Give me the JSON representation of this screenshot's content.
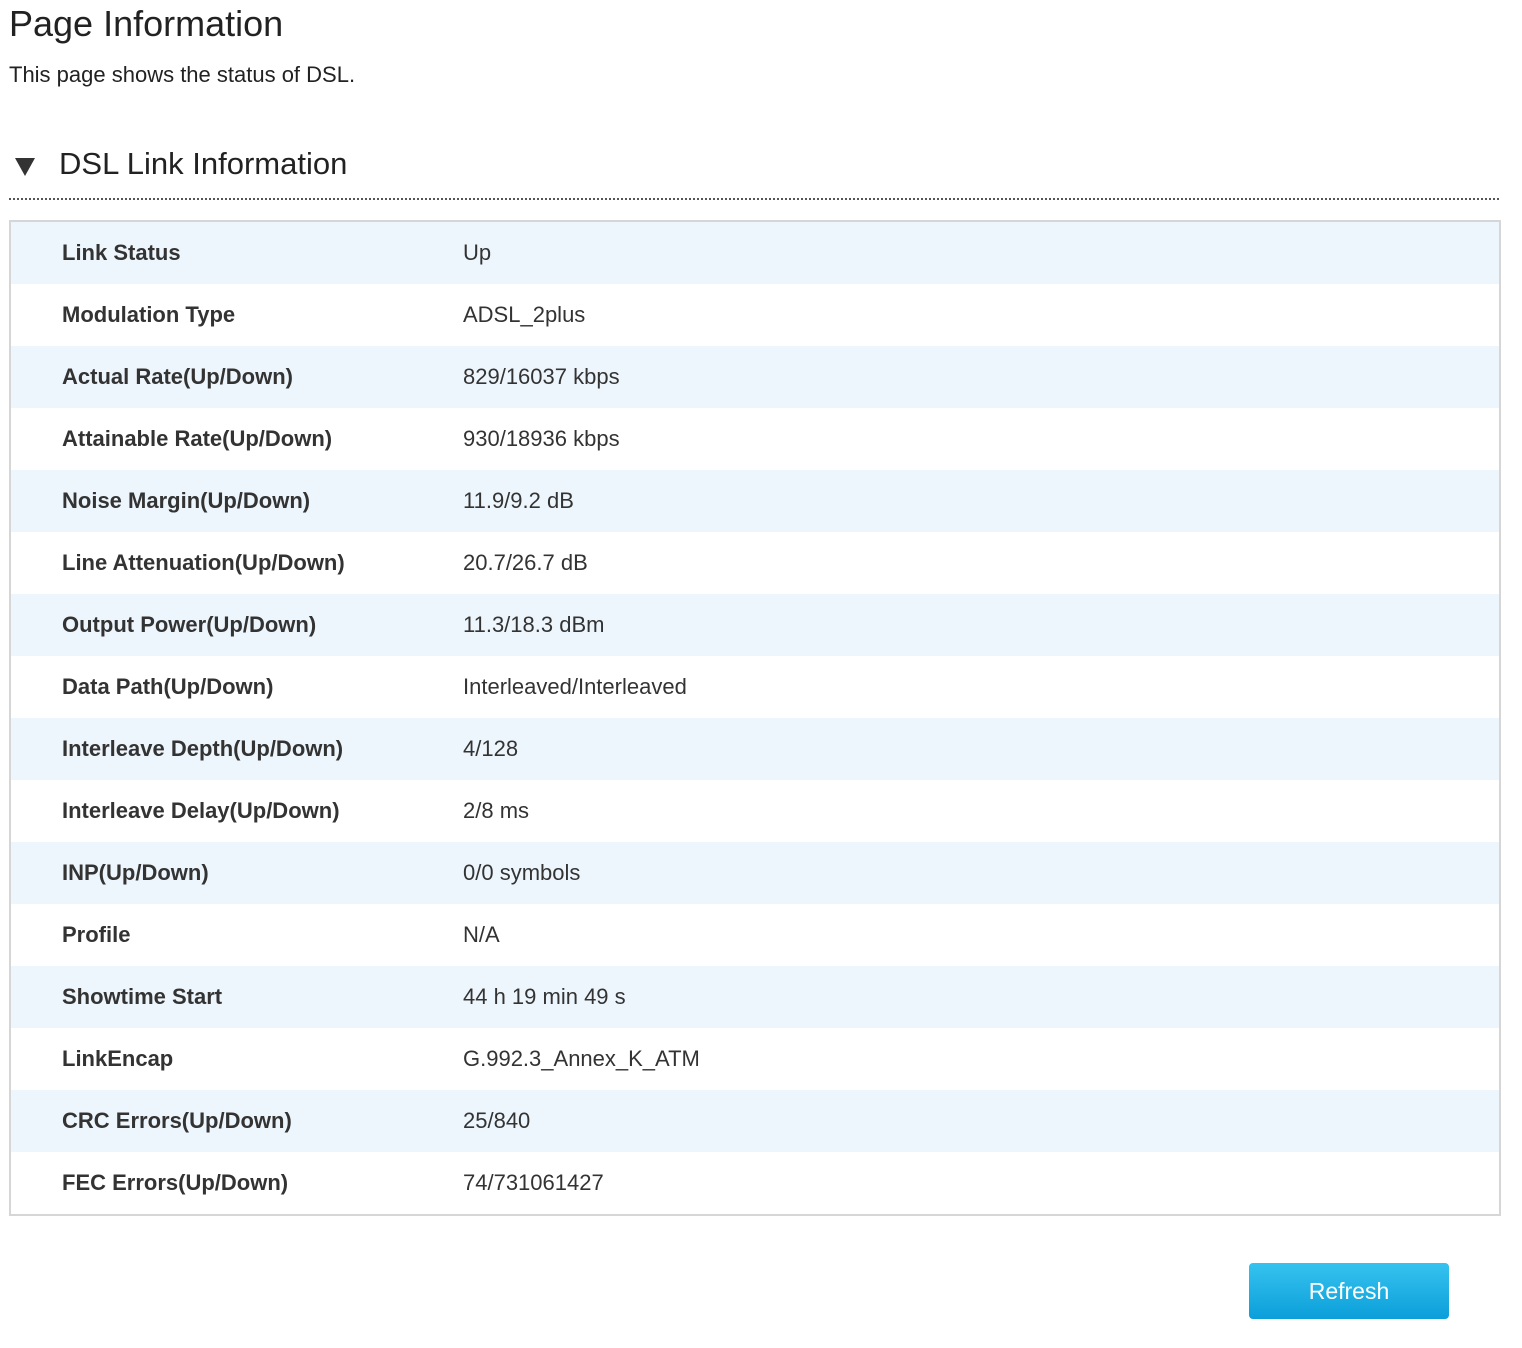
{
  "page": {
    "title": "Page Information",
    "description": "This page shows the status of DSL."
  },
  "section": {
    "title": "DSL Link Information",
    "toggle_icon": "triangle-down-icon"
  },
  "rows": [
    {
      "label": "Link Status",
      "value": "Up"
    },
    {
      "label": "Modulation Type",
      "value": "ADSL_2plus"
    },
    {
      "label": "Actual Rate(Up/Down)",
      "value": "829/16037 kbps"
    },
    {
      "label": "Attainable Rate(Up/Down)",
      "value": "930/18936 kbps"
    },
    {
      "label": "Noise Margin(Up/Down)",
      "value": "11.9/9.2 dB"
    },
    {
      "label": "Line Attenuation(Up/Down)",
      "value": "20.7/26.7 dB"
    },
    {
      "label": "Output Power(Up/Down)",
      "value": "11.3/18.3 dBm"
    },
    {
      "label": "Data Path(Up/Down)",
      "value": "Interleaved/Interleaved"
    },
    {
      "label": "Interleave Depth(Up/Down)",
      "value": "4/128"
    },
    {
      "label": "Interleave Delay(Up/Down)",
      "value": "2/8 ms"
    },
    {
      "label": "INP(Up/Down)",
      "value": "0/0 symbols"
    },
    {
      "label": "Profile",
      "value": "N/A"
    },
    {
      "label": "Showtime Start",
      "value": "44 h 19 min 49 s"
    },
    {
      "label": "LinkEncap",
      "value": "G.992.3_Annex_K_ATM"
    },
    {
      "label": "CRC Errors(Up/Down)",
      "value": "25/840"
    },
    {
      "label": "FEC Errors(Up/Down)",
      "value": "74/731061427"
    }
  ],
  "actions": {
    "refresh_label": "Refresh"
  },
  "colors": {
    "row_alt": "#eef6fd",
    "button": "#0b9ed9"
  }
}
